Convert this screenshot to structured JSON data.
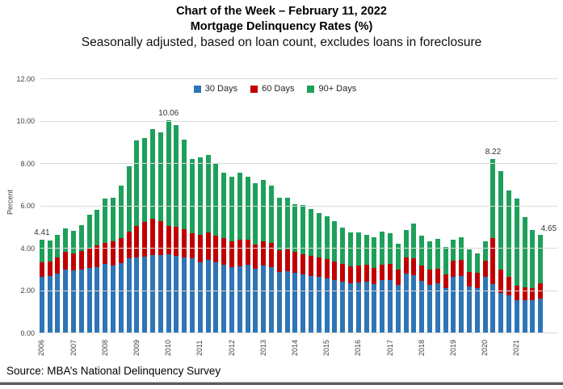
{
  "title": {
    "line1": "Chart of the Week – February 11, 2022",
    "line2": "Mortgage Delinquency Rates (%)",
    "line3": "Seasonally adjusted, based on loan count, excludes loans in foreclosure"
  },
  "source": "Source: MBA’s National Delinquency Survey",
  "colors": {
    "series_30": "#2E75B6",
    "series_60": "#C00000",
    "series_90": "#1EA05B",
    "gridline": "#D9D9D9",
    "axis_text": "#404040",
    "bottom_rule": "#5A5A5A"
  },
  "y_axis": {
    "label": "Percent",
    "tick_labels": [
      "0.00",
      "2.00",
      "4.00",
      "6.00",
      "8.00",
      "10.00",
      "12.00"
    ]
  },
  "x_axis": {
    "years": [
      "2006",
      "2007",
      "2008",
      "2009",
      "2010",
      "2011",
      "2012",
      "2013",
      "2014",
      "2015",
      "2016",
      "2017",
      "2018",
      "2019",
      "2020",
      "2021"
    ]
  },
  "chart_data": {
    "type": "bar",
    "stacked": true,
    "title": "Mortgage Delinquency Rates (%)",
    "ylabel": "Percent",
    "ylim": [
      0,
      12
    ],
    "ytick_step": 2,
    "grid": true,
    "legend_position": "top-center",
    "x": [
      "2006 Q1",
      "2006 Q2",
      "2006 Q3",
      "2006 Q4",
      "2007 Q1",
      "2007 Q2",
      "2007 Q3",
      "2007 Q4",
      "2008 Q1",
      "2008 Q2",
      "2008 Q3",
      "2008 Q4",
      "2009 Q1",
      "2009 Q2",
      "2009 Q3",
      "2009 Q4",
      "2010 Q1",
      "2010 Q2",
      "2010 Q3",
      "2010 Q4",
      "2011 Q1",
      "2011 Q2",
      "2011 Q3",
      "2011 Q4",
      "2012 Q1",
      "2012 Q2",
      "2012 Q3",
      "2012 Q4",
      "2013 Q1",
      "2013 Q2",
      "2013 Q3",
      "2013 Q4",
      "2014 Q1",
      "2014 Q2",
      "2014 Q3",
      "2014 Q4",
      "2015 Q1",
      "2015 Q2",
      "2015 Q3",
      "2015 Q4",
      "2016 Q1",
      "2016 Q2",
      "2016 Q3",
      "2016 Q4",
      "2017 Q1",
      "2017 Q2",
      "2017 Q3",
      "2017 Q4",
      "2018 Q1",
      "2018 Q2",
      "2018 Q3",
      "2018 Q4",
      "2019 Q1",
      "2019 Q2",
      "2019 Q3",
      "2019 Q4",
      "2020 Q1",
      "2020 Q2",
      "2020 Q3",
      "2020 Q4",
      "2021 Q1",
      "2021 Q2",
      "2021 Q3",
      "2021 Q4"
    ],
    "series": [
      {
        "name": "30 Days",
        "color": "#2E75B6",
        "values": [
          2.66,
          2.69,
          2.82,
          3.02,
          2.96,
          3.02,
          3.08,
          3.14,
          3.26,
          3.22,
          3.31,
          3.54,
          3.6,
          3.64,
          3.69,
          3.7,
          3.73,
          3.67,
          3.6,
          3.54,
          3.35,
          3.46,
          3.35,
          3.25,
          3.13,
          3.18,
          3.25,
          3.04,
          3.21,
          3.11,
          2.91,
          2.92,
          2.85,
          2.78,
          2.72,
          2.65,
          2.59,
          2.52,
          2.45,
          2.36,
          2.4,
          2.44,
          2.33,
          2.5,
          2.52,
          2.27,
          2.84,
          2.75,
          2.47,
          2.3,
          2.36,
          2.14,
          2.65,
          2.72,
          2.21,
          2.14,
          2.67,
          2.34,
          1.9,
          1.8,
          1.55,
          1.55,
          1.55,
          1.65
        ]
      },
      {
        "name": "60 Days",
        "color": "#C00000",
        "values": [
          0.7,
          0.7,
          0.76,
          0.82,
          0.83,
          0.88,
          0.94,
          1.01,
          1.02,
          1.12,
          1.18,
          1.27,
          1.47,
          1.62,
          1.73,
          1.6,
          1.34,
          1.35,
          1.3,
          1.2,
          1.3,
          1.3,
          1.25,
          1.25,
          1.21,
          1.25,
          1.19,
          1.16,
          1.15,
          1.15,
          1.01,
          1.03,
          0.99,
          0.96,
          0.93,
          0.92,
          0.91,
          0.88,
          0.83,
          0.8,
          0.82,
          0.8,
          0.77,
          0.76,
          0.77,
          0.76,
          0.76,
          0.8,
          0.75,
          0.7,
          0.7,
          0.65,
          0.77,
          0.75,
          0.7,
          0.7,
          0.77,
          2.15,
          1.1,
          0.85,
          0.7,
          0.64,
          0.6,
          0.7
        ]
      },
      {
        "name": "90+ Days",
        "color": "#1EA05B",
        "values": [
          1.05,
          1.0,
          1.09,
          1.11,
          1.05,
          1.22,
          1.57,
          1.67,
          2.07,
          2.07,
          2.5,
          3.07,
          4.05,
          3.98,
          4.22,
          4.17,
          4.99,
          4.83,
          4.23,
          3.48,
          3.67,
          3.68,
          3.39,
          3.08,
          3.06,
          3.15,
          2.96,
          2.89,
          2.89,
          2.7,
          2.49,
          2.44,
          2.27,
          2.3,
          2.2,
          2.11,
          2.04,
          1.9,
          1.71,
          1.61,
          1.55,
          1.42,
          1.42,
          1.54,
          1.42,
          1.21,
          1.28,
          1.62,
          1.41,
          1.36,
          1.41,
          1.27,
          1.0,
          1.06,
          1.06,
          0.93,
          0.92,
          3.73,
          4.65,
          4.08,
          4.13,
          3.28,
          2.73,
          2.3
        ]
      }
    ],
    "annotations": [
      {
        "index": 0,
        "label": "4.41"
      },
      {
        "index": 16,
        "label": "10.06"
      },
      {
        "index": 57,
        "label": "8.22"
      },
      {
        "index": 63,
        "label": "4.65",
        "dx": 10,
        "dy": -13
      }
    ]
  }
}
